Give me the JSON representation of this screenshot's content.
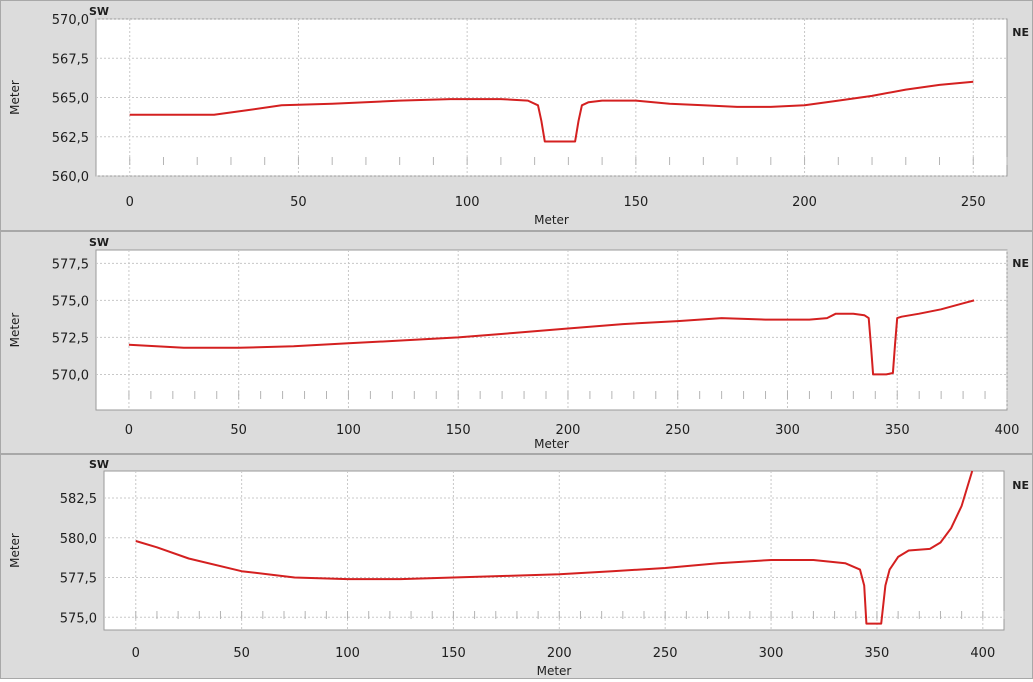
{
  "colors": {
    "panel_bg": "#dcdcdc",
    "plot_bg": "#ffffff",
    "grid": "#c8c8c8",
    "line": "#d42020",
    "text": "#1e1e1e"
  },
  "chart_data": [
    {
      "type": "line",
      "left_label": "SW",
      "right_label": "NE",
      "xlabel": "Meter",
      "ylabel": "Meter",
      "xlim": [
        -10,
        260
      ],
      "ylim": [
        560.0,
        570.0
      ],
      "xticks": [
        0,
        50,
        100,
        150,
        200,
        250
      ],
      "yticks": [
        560.0,
        562.5,
        565.0,
        567.5,
        570.0
      ],
      "xtick_labels": [
        "0",
        "50",
        "100",
        "150",
        "200",
        "250"
      ],
      "ytick_labels": [
        "560,0",
        "562,5",
        "565,0",
        "567,5",
        "570,0"
      ],
      "grid": true,
      "series": [
        {
          "x": [
            0,
            10,
            25,
            35,
            45,
            60,
            80,
            95,
            110,
            118,
            121,
            122,
            123,
            125,
            130,
            132,
            133,
            134,
            136,
            140,
            150,
            160,
            170,
            180,
            190,
            200,
            210,
            220,
            230,
            240,
            250
          ],
          "y": [
            563.9,
            563.9,
            563.9,
            564.2,
            564.5,
            564.6,
            564.8,
            564.9,
            564.9,
            564.8,
            564.5,
            563.5,
            562.2,
            562.2,
            562.2,
            562.2,
            563.5,
            564.5,
            564.7,
            564.8,
            564.8,
            564.6,
            564.5,
            564.4,
            564.4,
            564.5,
            564.8,
            565.1,
            565.5,
            565.8,
            566.0
          ]
        }
      ]
    },
    {
      "type": "line",
      "left_label": "SW",
      "right_label": "NE",
      "xlabel": "Meter",
      "ylabel": "Meter",
      "xlim": [
        -15,
        400
      ],
      "ylim": [
        567.6,
        578.4
      ],
      "xticks": [
        0,
        50,
        100,
        150,
        200,
        250,
        300,
        350,
        400
      ],
      "yticks": [
        570.0,
        572.5,
        575.0,
        577.5
      ],
      "xtick_labels": [
        "0",
        "50",
        "100",
        "150",
        "200",
        "250",
        "300",
        "350",
        "400"
      ],
      "ytick_labels": [
        "570,0",
        "572,5",
        "575,0",
        "577,5"
      ],
      "grid": true,
      "series": [
        {
          "x": [
            0,
            25,
            50,
            75,
            100,
            125,
            150,
            175,
            200,
            225,
            250,
            270,
            290,
            310,
            318,
            322,
            330,
            335,
            337,
            338,
            339,
            341,
            345,
            348,
            349,
            350,
            352,
            360,
            370,
            380,
            385
          ],
          "y": [
            572.0,
            571.8,
            571.8,
            571.9,
            572.1,
            572.3,
            572.5,
            572.8,
            573.1,
            573.4,
            573.6,
            573.8,
            573.7,
            573.7,
            573.8,
            574.1,
            574.1,
            574.0,
            573.8,
            572.0,
            570.0,
            570.0,
            570.0,
            570.1,
            572.0,
            573.8,
            573.9,
            574.1,
            574.4,
            574.8,
            575.0
          ]
        }
      ]
    },
    {
      "type": "line",
      "left_label": "SW",
      "right_label": "NE",
      "xlabel": "Meter",
      "ylabel": "Meter",
      "xlim": [
        -15,
        410
      ],
      "ylim": [
        574.2,
        584.2
      ],
      "xticks": [
        0,
        50,
        100,
        150,
        200,
        250,
        300,
        350,
        400
      ],
      "yticks": [
        575.0,
        577.5,
        580.0,
        582.5
      ],
      "xtick_labels": [
        "0",
        "50",
        "100",
        "150",
        "200",
        "250",
        "300",
        "350",
        "400"
      ],
      "ytick_labels": [
        "575,0",
        "577,5",
        "580,0",
        "582,5"
      ],
      "grid": true,
      "series": [
        {
          "x": [
            0,
            10,
            25,
            50,
            75,
            100,
            125,
            150,
            175,
            200,
            225,
            250,
            275,
            300,
            320,
            335,
            342,
            344,
            345,
            346,
            348,
            350,
            352,
            354,
            356,
            360,
            365,
            375,
            380,
            385,
            390,
            395
          ],
          "y": [
            579.8,
            579.4,
            578.7,
            577.9,
            577.5,
            577.4,
            577.4,
            577.5,
            577.6,
            577.7,
            577.9,
            578.1,
            578.4,
            578.6,
            578.6,
            578.4,
            578.0,
            577.0,
            574.6,
            574.6,
            574.6,
            574.6,
            574.6,
            577.0,
            578.0,
            578.8,
            579.2,
            579.3,
            579.7,
            580.6,
            582.0,
            584.2
          ]
        }
      ]
    }
  ]
}
